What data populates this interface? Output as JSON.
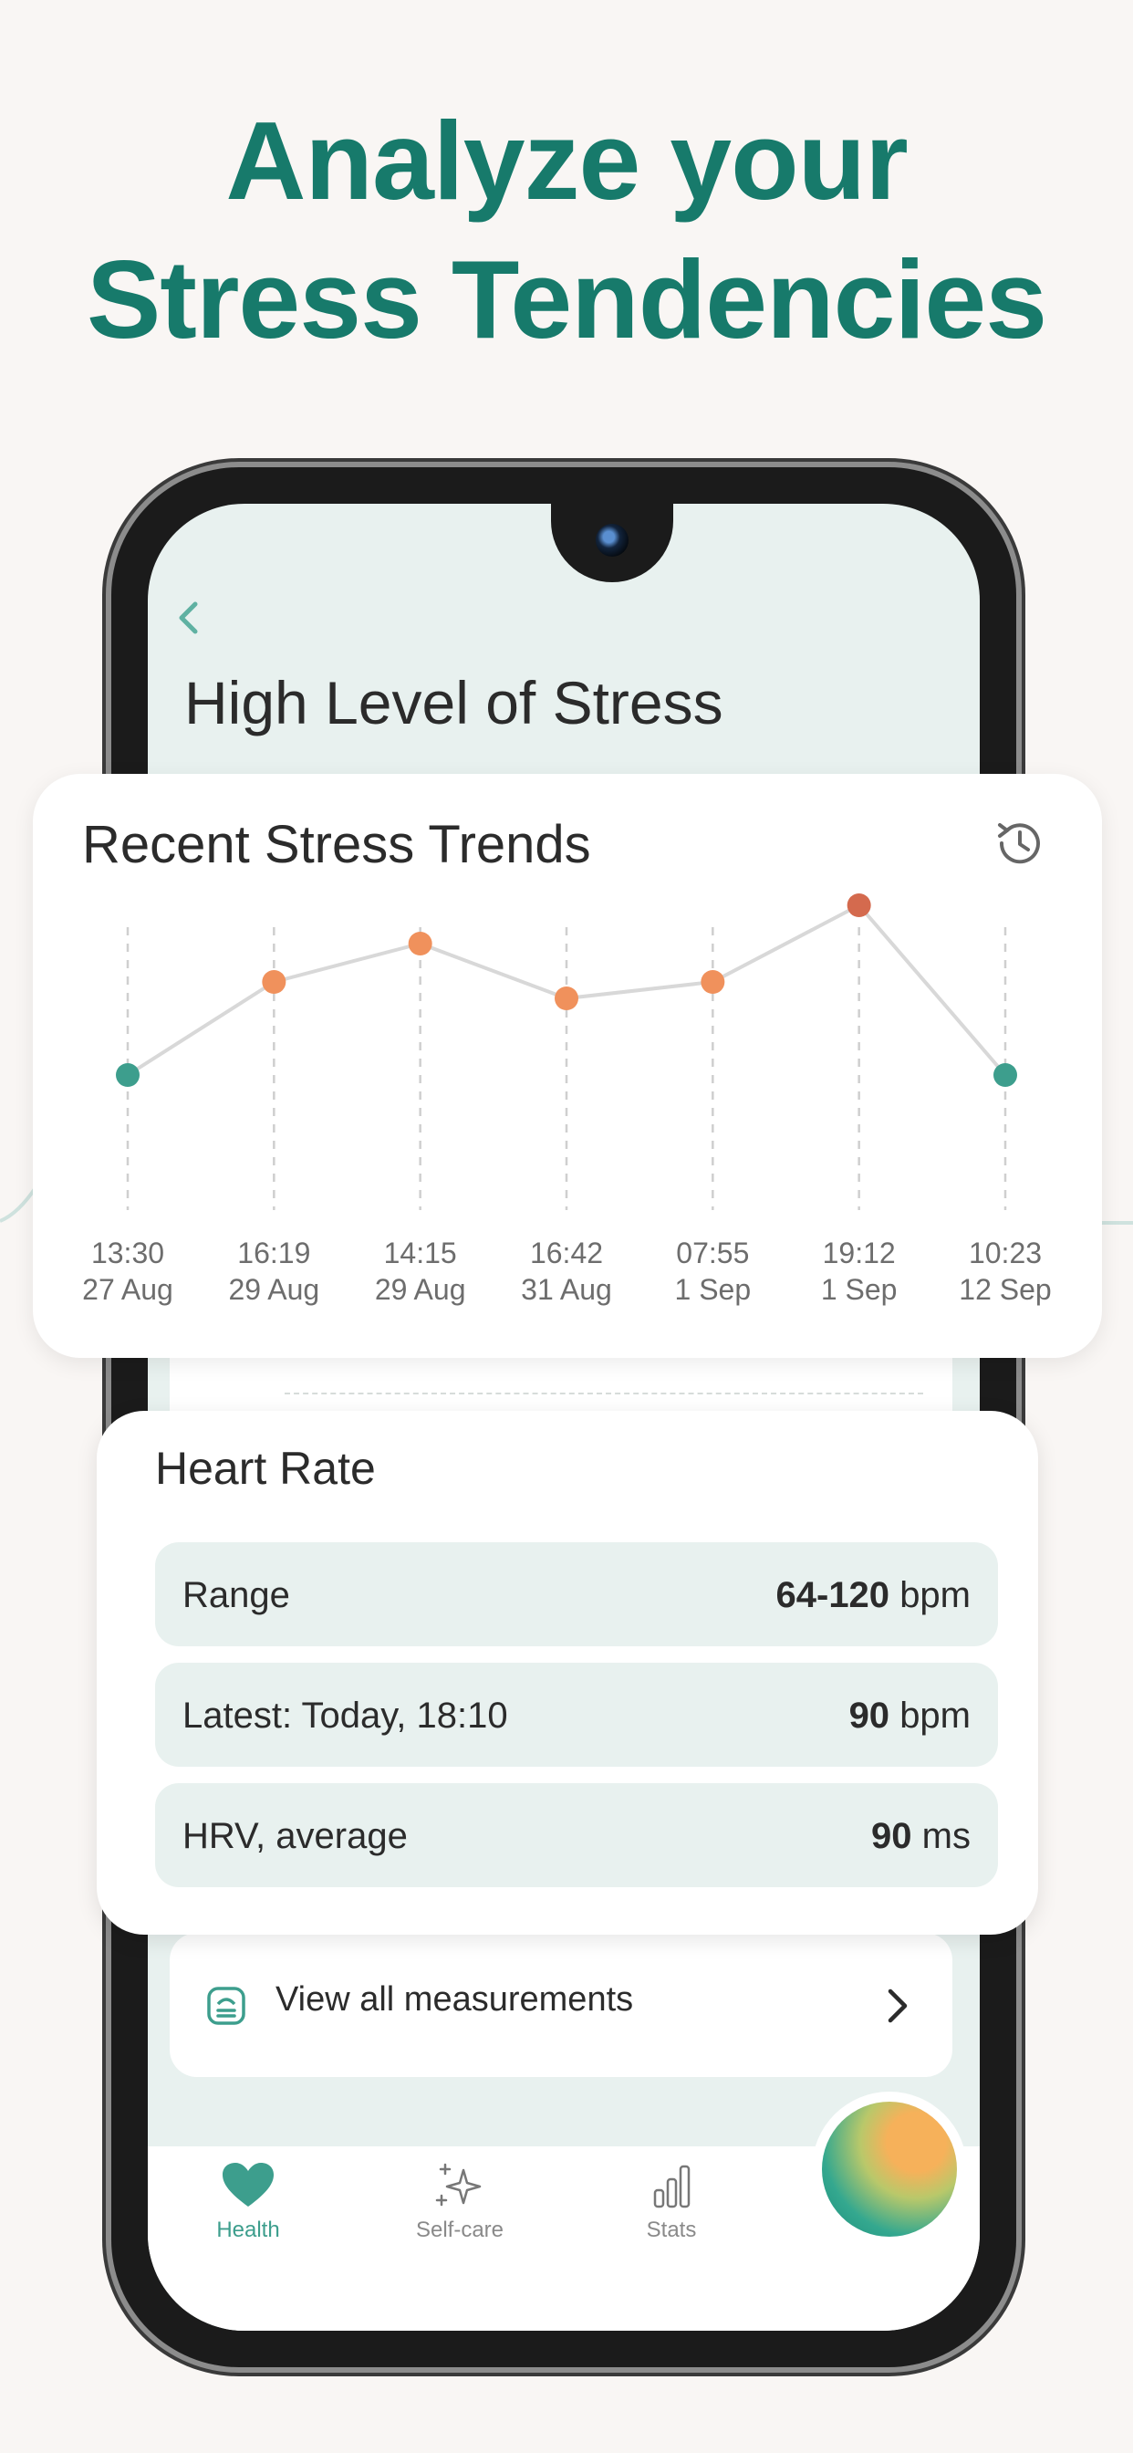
{
  "headline": {
    "line1": "Analyze your",
    "line2": "Stress Tendencies"
  },
  "screen": {
    "page_title": "High Level of Stress",
    "measurements_link": "View all measurements"
  },
  "trend_card": {
    "title": "Recent Stress Trends"
  },
  "chart_data": {
    "type": "line",
    "x": [
      "13:30 27 Aug",
      "16:19 29 Aug",
      "14:15 29 Aug",
      "16:42 31 Aug",
      "07:55 1 Sep",
      "19:12 1 Sep",
      "10:23 12 Sep"
    ],
    "x_time": [
      "13:30",
      "16:19",
      "14:15",
      "16:42",
      "07:55",
      "19:12",
      "10:23"
    ],
    "x_date": [
      "27 Aug",
      "29 Aug",
      "29 Aug",
      "31 Aug",
      "1 Sep",
      "1 Sep",
      "12 Sep"
    ],
    "values": [
      2,
      3.7,
      4.4,
      3.4,
      3.7,
      5.1,
      2
    ],
    "point_levels": [
      "low",
      "medium",
      "medium",
      "medium",
      "medium",
      "high",
      "low"
    ],
    "ylim": [
      0,
      6
    ],
    "colors": {
      "low": "#3d9e8d",
      "medium": "#f0915c",
      "high": "#d46a4e",
      "line": "#d8d8d8"
    },
    "grid": "vertical-dashed",
    "title": "",
    "xlabel": "",
    "ylabel": ""
  },
  "heart_rate": {
    "title": "Heart Rate",
    "rows": [
      {
        "label": "Range",
        "value": "64-120",
        "unit": "bpm"
      },
      {
        "label": "Latest: Today, 18:10",
        "value": "90",
        "unit": "bpm"
      },
      {
        "label": "HRV, average",
        "value": "90",
        "unit": "ms"
      }
    ]
  },
  "nav": {
    "items": [
      {
        "label": "Health",
        "icon": "heart-icon",
        "active": true
      },
      {
        "label": "Self-care",
        "icon": "sparkle-icon",
        "active": false
      },
      {
        "label": "Stats",
        "icon": "bar-chart-icon",
        "active": false
      }
    ]
  },
  "colors": {
    "brand": "#177a6b",
    "accent": "#3d9e8d",
    "screen_bg": "#e8f1ef"
  }
}
